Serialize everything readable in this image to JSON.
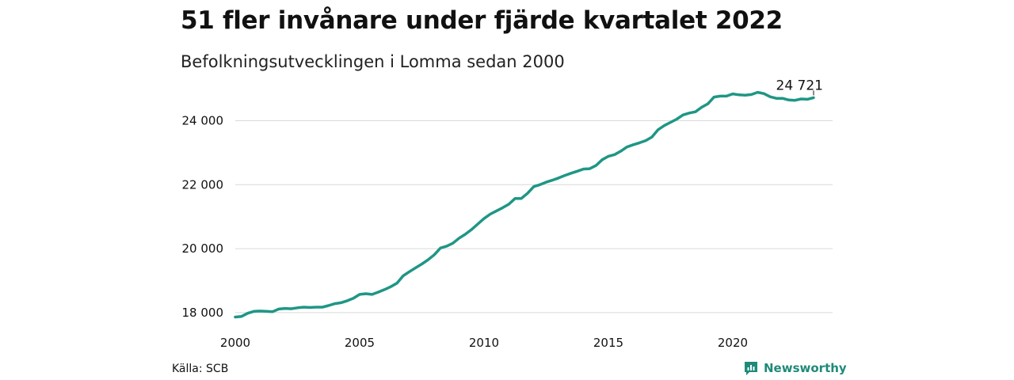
{
  "title": "51 fler invånare under fjärde kvartalet 2022",
  "subtitle": "Befolkningsutvecklingen i Lomma sedan 2000",
  "source": "Källa: SCB",
  "brand": {
    "name": "Newsworthy",
    "icon": "newsworthy-logo-icon",
    "color": "#1f8a78"
  },
  "chart_data": {
    "type": "line",
    "xlim": [
      2000,
      2023.25
    ],
    "ylim": [
      17700,
      25300
    ],
    "x_ticks": [
      2000,
      2005,
      2010,
      2015,
      2020
    ],
    "x_tick_labels": [
      "2000",
      "2005",
      "2010",
      "2015",
      "2020"
    ],
    "y_ticks": [
      18000,
      20000,
      22000,
      24000
    ],
    "y_tick_labels": [
      "18 000",
      "20 000",
      "22 000",
      "24 000"
    ],
    "grid": true,
    "line_color": "#1f9685",
    "end_label": "24 721",
    "points": [
      [
        2000.0,
        17860
      ],
      [
        2000.25,
        17880
      ],
      [
        2000.5,
        17980
      ],
      [
        2000.75,
        18040
      ],
      [
        2001.0,
        18050
      ],
      [
        2001.25,
        18040
      ],
      [
        2001.5,
        18030
      ],
      [
        2001.75,
        18110
      ],
      [
        2002.0,
        18130
      ],
      [
        2002.25,
        18120
      ],
      [
        2002.5,
        18150
      ],
      [
        2002.75,
        18170
      ],
      [
        2003.0,
        18160
      ],
      [
        2003.25,
        18170
      ],
      [
        2003.5,
        18170
      ],
      [
        2003.75,
        18220
      ],
      [
        2004.0,
        18280
      ],
      [
        2004.25,
        18310
      ],
      [
        2004.5,
        18370
      ],
      [
        2004.75,
        18450
      ],
      [
        2005.0,
        18570
      ],
      [
        2005.25,
        18590
      ],
      [
        2005.5,
        18570
      ],
      [
        2005.75,
        18640
      ],
      [
        2006.0,
        18720
      ],
      [
        2006.25,
        18810
      ],
      [
        2006.5,
        18920
      ],
      [
        2006.75,
        19150
      ],
      [
        2007.0,
        19280
      ],
      [
        2007.25,
        19400
      ],
      [
        2007.5,
        19520
      ],
      [
        2007.75,
        19650
      ],
      [
        2008.0,
        19810
      ],
      [
        2008.25,
        20020
      ],
      [
        2008.5,
        20080
      ],
      [
        2008.75,
        20170
      ],
      [
        2009.0,
        20330
      ],
      [
        2009.25,
        20450
      ],
      [
        2009.5,
        20600
      ],
      [
        2009.75,
        20770
      ],
      [
        2010.0,
        20940
      ],
      [
        2010.25,
        21080
      ],
      [
        2010.5,
        21180
      ],
      [
        2010.75,
        21280
      ],
      [
        2011.0,
        21390
      ],
      [
        2011.25,
        21570
      ],
      [
        2011.5,
        21570
      ],
      [
        2011.75,
        21730
      ],
      [
        2012.0,
        21940
      ],
      [
        2012.25,
        22000
      ],
      [
        2012.5,
        22080
      ],
      [
        2012.75,
        22140
      ],
      [
        2013.0,
        22210
      ],
      [
        2013.25,
        22290
      ],
      [
        2013.5,
        22360
      ],
      [
        2013.75,
        22420
      ],
      [
        2014.0,
        22490
      ],
      [
        2014.25,
        22500
      ],
      [
        2014.5,
        22600
      ],
      [
        2014.75,
        22780
      ],
      [
        2015.0,
        22890
      ],
      [
        2015.25,
        22940
      ],
      [
        2015.5,
        23050
      ],
      [
        2015.75,
        23180
      ],
      [
        2016.0,
        23250
      ],
      [
        2016.25,
        23310
      ],
      [
        2016.5,
        23380
      ],
      [
        2016.75,
        23490
      ],
      [
        2017.0,
        23720
      ],
      [
        2017.25,
        23850
      ],
      [
        2017.5,
        23950
      ],
      [
        2017.75,
        24050
      ],
      [
        2018.0,
        24180
      ],
      [
        2018.25,
        24240
      ],
      [
        2018.5,
        24280
      ],
      [
        2018.75,
        24420
      ],
      [
        2019.0,
        24530
      ],
      [
        2019.25,
        24740
      ],
      [
        2019.5,
        24770
      ],
      [
        2019.75,
        24770
      ],
      [
        2020.0,
        24840
      ],
      [
        2020.25,
        24810
      ],
      [
        2020.5,
        24800
      ],
      [
        2020.75,
        24820
      ],
      [
        2021.0,
        24890
      ],
      [
        2021.25,
        24850
      ],
      [
        2021.5,
        24750
      ],
      [
        2021.75,
        24700
      ],
      [
        2022.0,
        24700
      ],
      [
        2022.25,
        24650
      ],
      [
        2022.5,
        24640
      ],
      [
        2022.75,
        24680
      ],
      [
        2023.0,
        24670
      ],
      [
        2023.25,
        24721
      ]
    ]
  }
}
